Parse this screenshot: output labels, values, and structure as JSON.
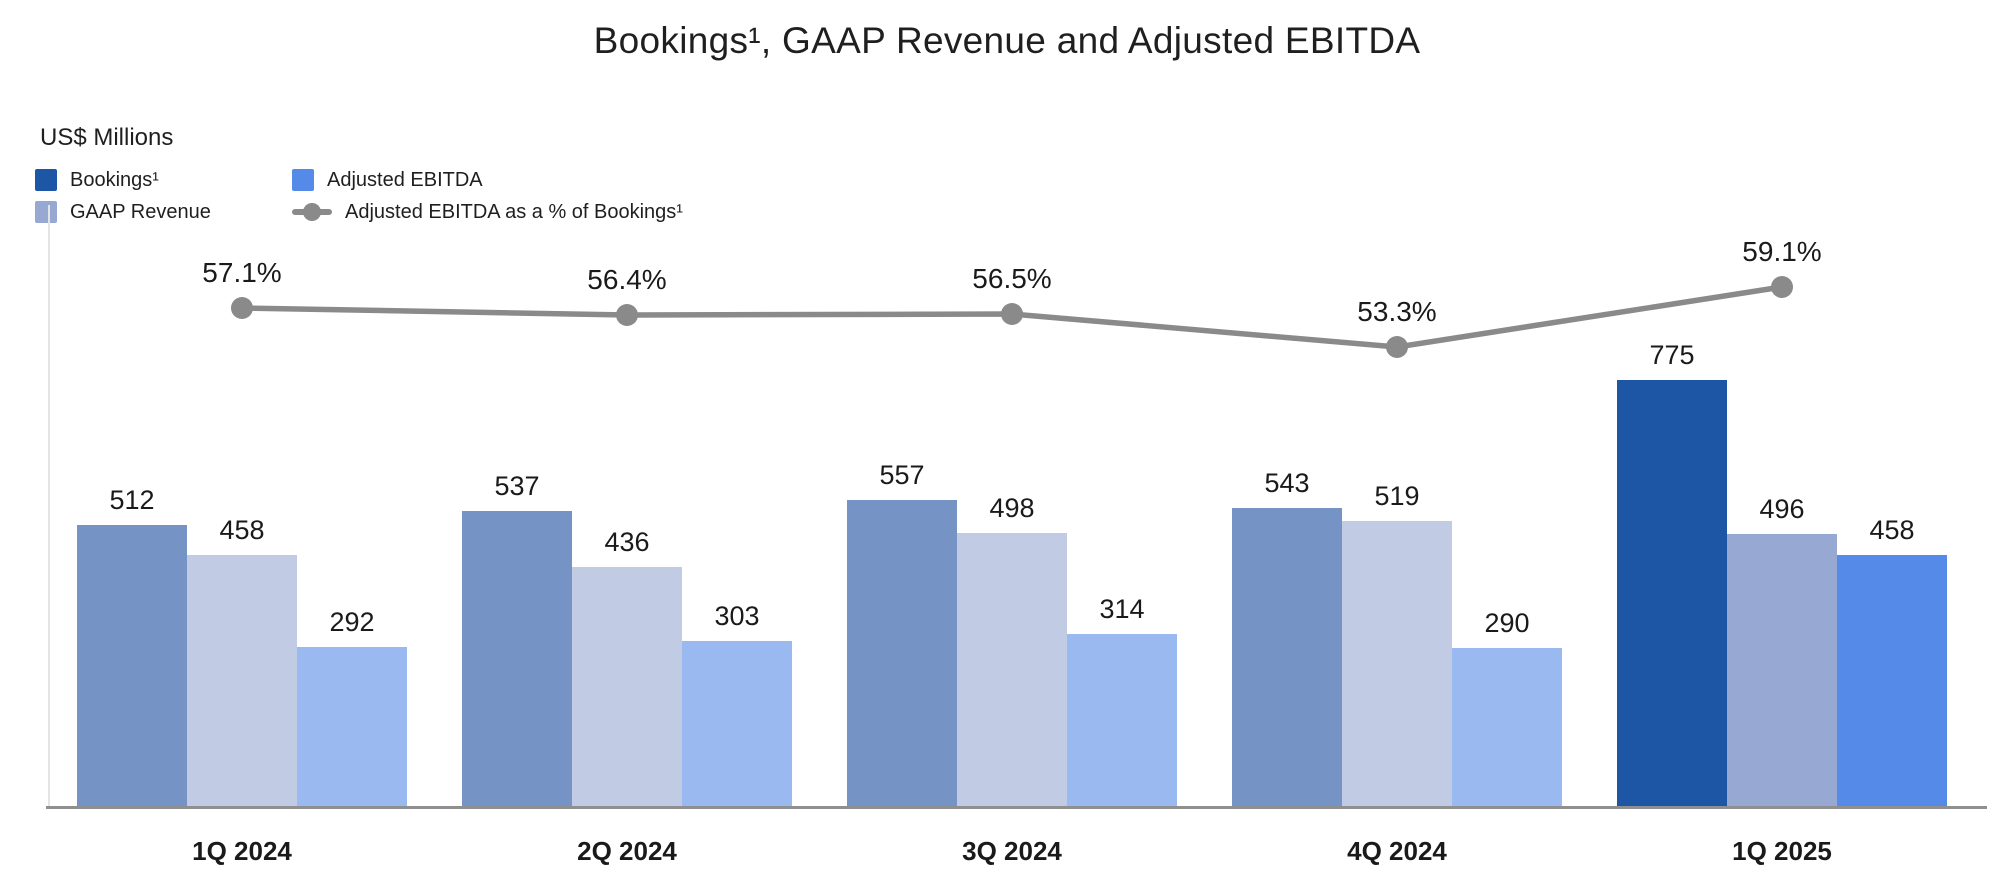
{
  "title": "Bookings¹, GAAP Revenue and Adjusted EBITDA",
  "units_label": "US$ Millions",
  "legend": {
    "items": [
      {
        "id": "bookings",
        "label": "Bookings¹",
        "swatch": "square",
        "color_key": "bookings"
      },
      {
        "id": "gaap",
        "label": "GAAP Revenue",
        "swatch": "square",
        "color_key": "gaap"
      },
      {
        "id": "ebitda",
        "label": "Adjusted EBITDA",
        "swatch": "square",
        "color_key": "ebitda"
      },
      {
        "id": "pct-line",
        "label": "Adjusted EBITDA as a % of Bookings¹",
        "swatch": "line-dot",
        "color_key": "line"
      }
    ]
  },
  "colors": {
    "bookings": "#1e56a6",
    "gaap": "#97a9d2",
    "ebitda": "#568ae9",
    "bookings_past": "#7693c5",
    "gaap_past": "#c1cbe4",
    "ebitda_past": "#9ab9f0",
    "line": "#8a8a8a",
    "axis": "#8f8f8f",
    "gridline": "#e4e4e4",
    "label": "#1a1a1a"
  },
  "chart_data": {
    "type": "bar",
    "title": "Bookings¹, GAAP Revenue and Adjusted EBITDA",
    "ylabel": "US$ Millions",
    "categories": [
      "1Q 2024",
      "2Q 2024",
      "3Q 2024",
      "4Q 2024",
      "1Q 2025"
    ],
    "series": [
      {
        "name": "Bookings¹",
        "values": [
          512,
          537,
          557,
          543,
          775
        ]
      },
      {
        "name": "GAAP Revenue",
        "values": [
          458,
          436,
          498,
          519,
          496
        ]
      },
      {
        "name": "Adjusted EBITDA",
        "values": [
          292,
          303,
          314,
          290,
          458
        ]
      }
    ],
    "line_series": {
      "name": "Adjusted EBITDA as a % of Bookings¹",
      "values": [
        57.1,
        56.4,
        56.5,
        53.3,
        59.1
      ],
      "labels": [
        "57.1%",
        "56.4%",
        "56.5%",
        "53.3%",
        "59.1%"
      ]
    },
    "highlight_category": "1Q 2025",
    "grid": false,
    "legend_position": "top-left",
    "value_labels": true
  }
}
